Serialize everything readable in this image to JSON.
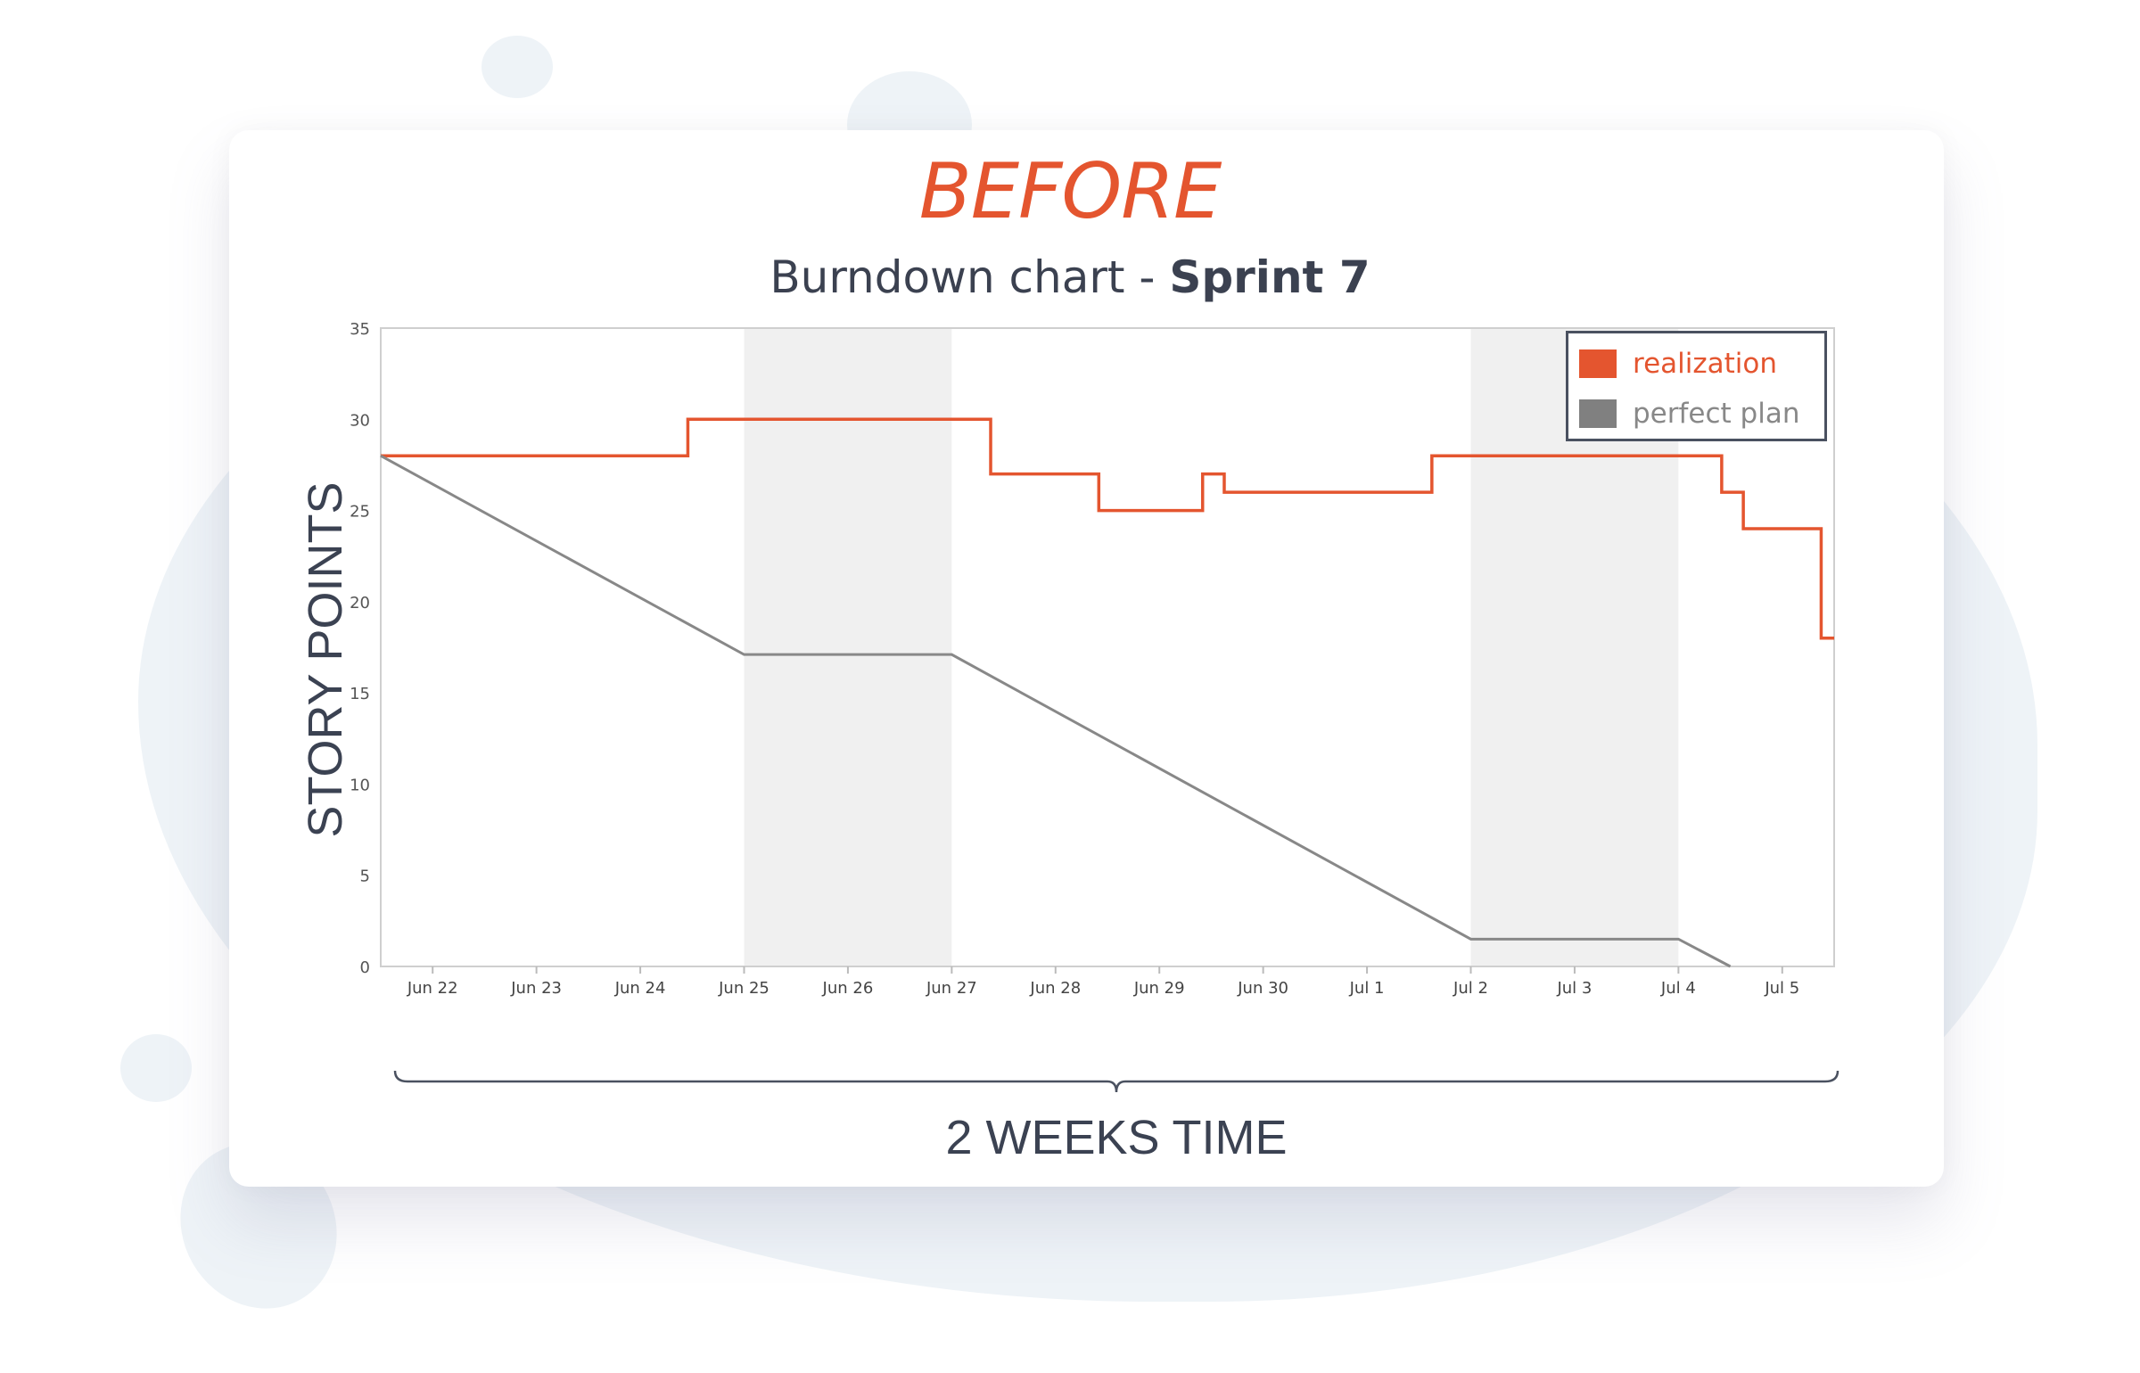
{
  "header": {
    "title": "BEFORE",
    "subtitle_prefix": "Burndown chart - ",
    "subtitle_bold": "Sprint 7"
  },
  "colors": {
    "realization": "#e4552f",
    "perfect_plan": "#888888",
    "weekend_shade": "#f0f0f0",
    "title": "#e4552f"
  },
  "caption": "2 WEEKS TIME",
  "chart_data": {
    "type": "line",
    "ylabel": "STORY POINTS",
    "xlabel": "",
    "ylim": [
      0,
      35
    ],
    "yticks": [
      "0",
      "5",
      "10",
      "15",
      "20",
      "25",
      "30",
      "35"
    ],
    "xlim": [
      "Jun 21 12:00",
      "Jul 5 12:00"
    ],
    "xticks": [
      "Jun 22",
      "Jun 23",
      "Jun 24",
      "Jun 25",
      "Jun 26",
      "Jun 27",
      "Jun 28",
      "Jun 29",
      "Jun 30",
      "Jul 1",
      "Jul 2",
      "Jul 3",
      "Jul 4",
      "Jul 5"
    ],
    "grid": false,
    "legend": "top-right",
    "shaded_ranges": [
      [
        "Jun 25 00:00",
        "Jun 27 00:00"
      ],
      [
        "Jul 2 00:00",
        "Jul 4 00:00"
      ]
    ],
    "series": [
      {
        "name": "realization",
        "step": true,
        "points": [
          [
            "Jun 21 12:00",
            28
          ],
          [
            "Jun 24 11:00",
            30
          ],
          [
            "Jun 27 09:00",
            27
          ],
          [
            "Jun 28 10:00",
            25
          ],
          [
            "Jun 29 10:00",
            27
          ],
          [
            "Jun 29 15:00",
            26
          ],
          [
            "Jul 1 15:00",
            28
          ],
          [
            "Jul 4 10:00",
            26
          ],
          [
            "Jul 4 15:00",
            24
          ],
          [
            "Jul 5 09:00",
            18
          ],
          [
            "Jul 5 12:00",
            18
          ]
        ]
      },
      {
        "name": "perfect plan",
        "step": false,
        "points": [
          [
            "Jun 21 12:00",
            28
          ],
          [
            "Jun 25 00:00",
            17.1
          ],
          [
            "Jun 27 00:00",
            17.1
          ],
          [
            "Jul 2 00:00",
            1.5
          ],
          [
            "Jul 4 00:00",
            1.5
          ],
          [
            "Jul 4 12:00",
            0
          ]
        ]
      }
    ]
  }
}
